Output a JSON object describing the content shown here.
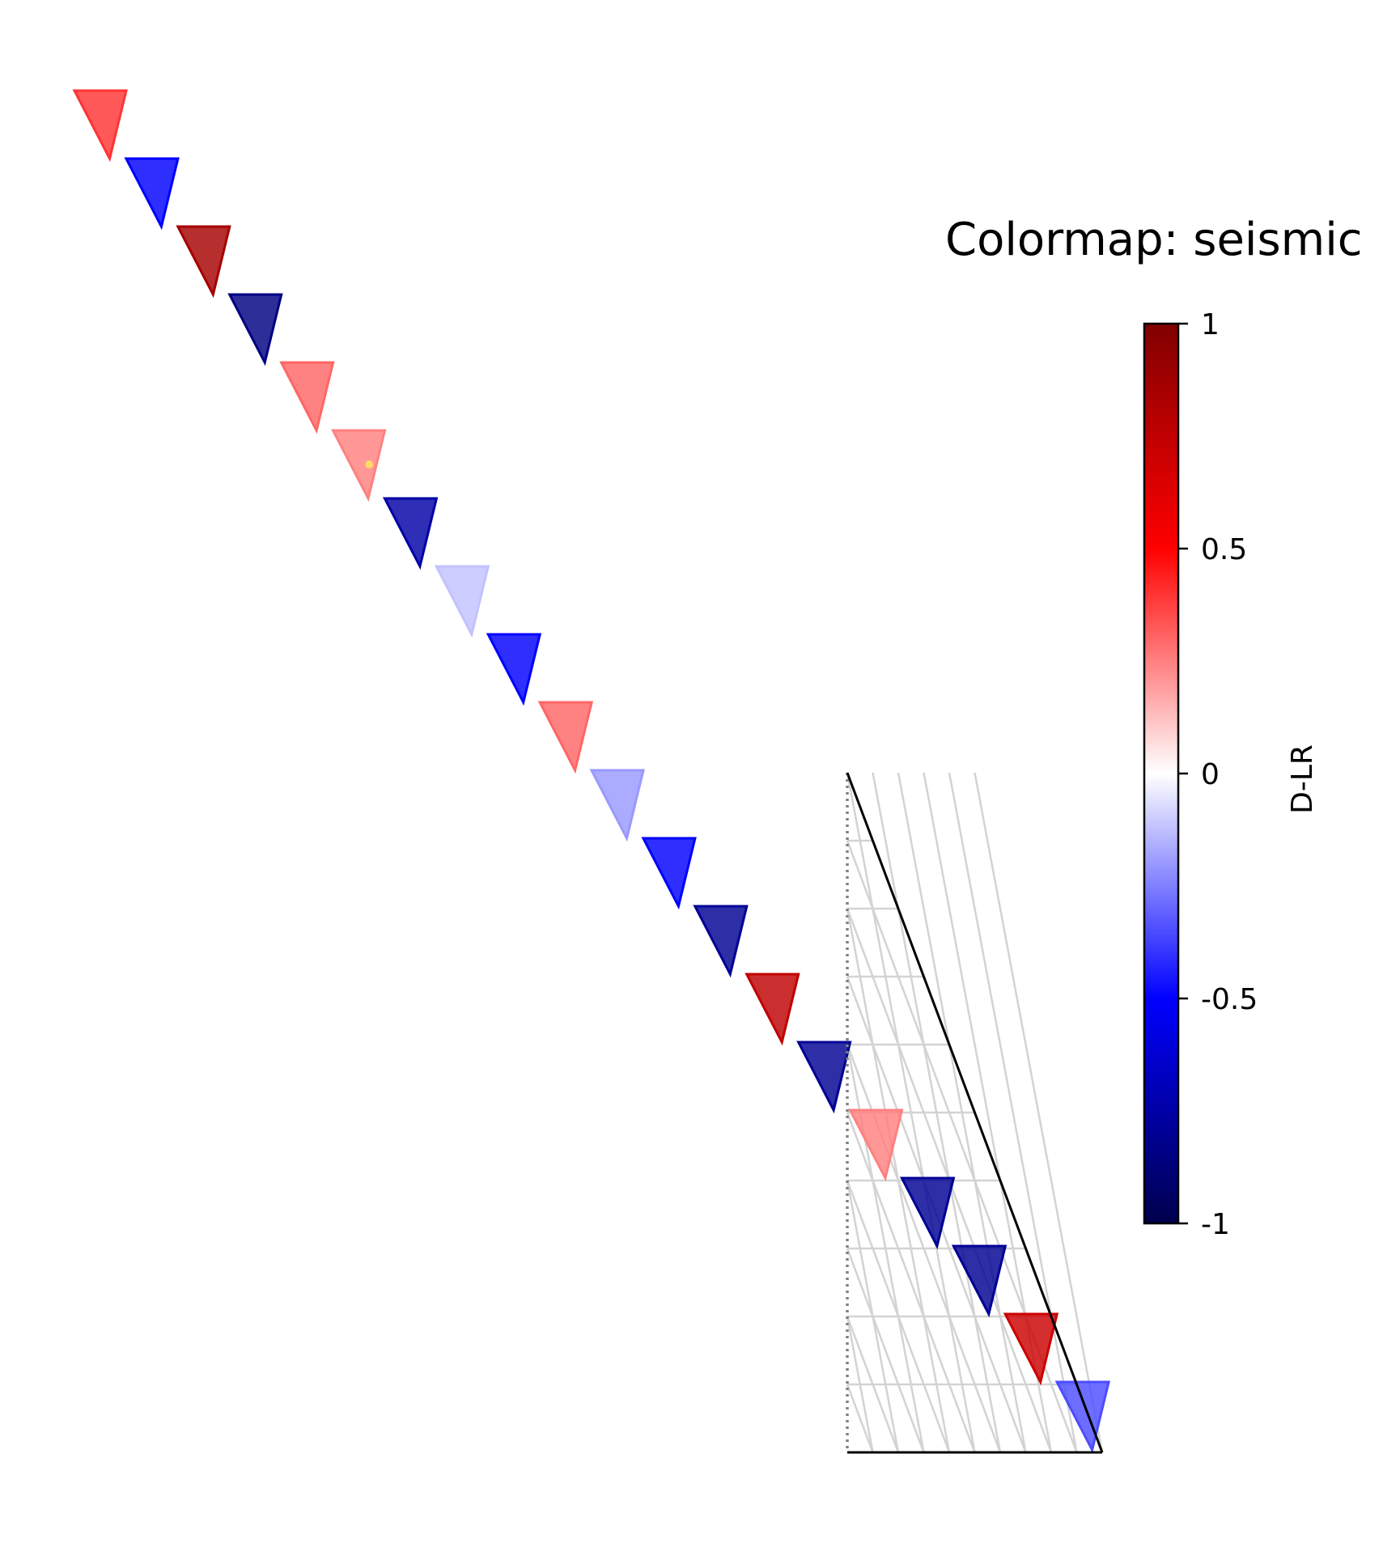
{
  "chart_data": {
    "type": "heatmap",
    "title": "Colormap: seismic",
    "colormap": "seismic",
    "colorbar": {
      "label": "D-LR",
      "range": [
        -1,
        1
      ],
      "ticks": [
        {
          "value": 1,
          "label": "1"
        },
        {
          "value": 0.5,
          "label": "0.5"
        },
        {
          "value": 0,
          "label": "0"
        },
        {
          "value": -0.5,
          "label": "-0.5"
        },
        {
          "value": -1,
          "label": "-1"
        }
      ]
    },
    "diagonal_cells": [
      0.4,
      -0.5,
      0.85,
      -0.85,
      0.3,
      0.25,
      -0.75,
      -0.12,
      -0.5,
      0.3,
      -0.2,
      -0.5,
      -0.8,
      0.75,
      -0.8,
      0.25,
      -0.8,
      -0.8,
      0.7,
      -0.35
    ],
    "marker": {
      "index": 5,
      "color": "#ffd966"
    },
    "grid_rows": 10
  }
}
